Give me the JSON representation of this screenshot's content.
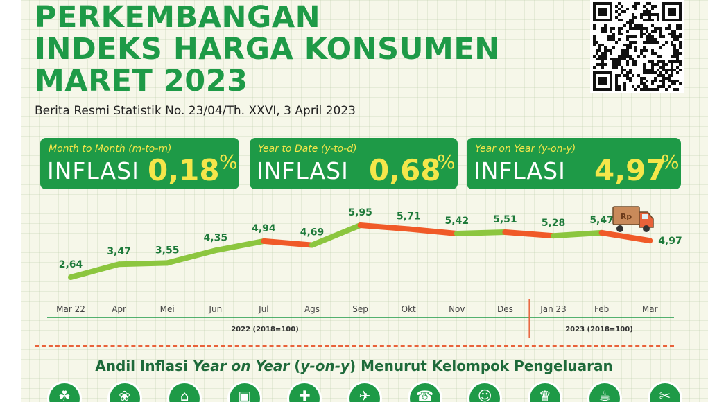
{
  "title": {
    "line1": "PERKEMBANGAN",
    "line2": "INDEKS HARGA KONSUMEN",
    "line3": "MARET 2023"
  },
  "subtitle": "Berita Resmi Statistik No. 23/04/Th. XXVI, 3 April 2023",
  "boxes": [
    {
      "label": "Month to Month (m-to-m)",
      "word": "INFLASI",
      "value": "0,18",
      "unit": "%"
    },
    {
      "label": "Year to Date (y-to-d)",
      "word": "INFLASI",
      "value": "0,68",
      "unit": "%"
    },
    {
      "label": "Year on Year (y-on-y)",
      "word": "INFLASI",
      "value": "4,97",
      "unit": "%"
    }
  ],
  "chart_data": {
    "type": "line",
    "categories": [
      "Mar 22",
      "Apr",
      "Mei",
      "Jun",
      "Jul",
      "Ags",
      "Sep",
      "Okt",
      "Nov",
      "Des",
      "Jan 23",
      "Feb",
      "Mar"
    ],
    "values": [
      2.64,
      3.47,
      3.55,
      4.35,
      4.94,
      4.69,
      5.95,
      5.71,
      5.42,
      5.51,
      5.28,
      5.47,
      4.97
    ],
    "value_labels": [
      "2,64",
      "3,47",
      "3,55",
      "4,35",
      "4,94",
      "4,69",
      "5,95",
      "5,71",
      "5,42",
      "5,51",
      "5,28",
      "5,47",
      "4,97"
    ],
    "year_labels": [
      "2022 (2018=100)",
      "2023 (2018=100)"
    ],
    "colors": {
      "up": "#8cc63f",
      "down": "#f05a28",
      "label": "#1e7a3a"
    },
    "truck_text": "Rp"
  },
  "andil": {
    "part1": "Andil Inflasi ",
    "part2": "Year on Year",
    "part3": " (",
    "part4": "y-on-y",
    "part5": ") Menurut Kelompok Pengeluaran"
  },
  "icons": [
    "food-icon",
    "clothing-icon",
    "house-icon",
    "household-icon",
    "health-icon",
    "transport-icon",
    "phone-icon",
    "recreation-icon",
    "education-icon",
    "restaurant-icon",
    "personal-care-icon"
  ],
  "colors": {
    "brand_green": "#1e9a47",
    "accent_yellow": "#f4e64a"
  }
}
